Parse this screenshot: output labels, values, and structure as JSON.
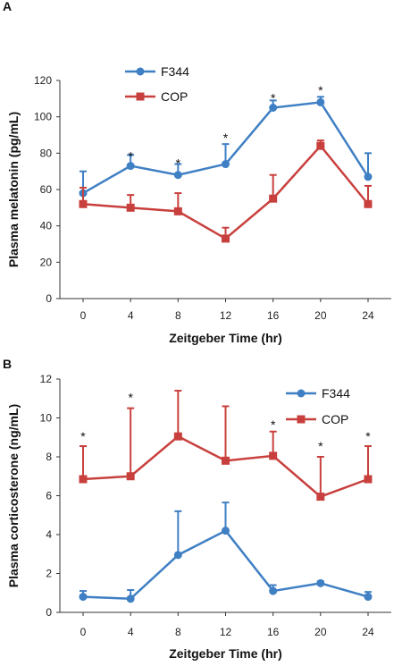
{
  "chart_data": [
    {
      "panel_label": "A",
      "type": "line",
      "ylabel": "Plasma melatonin (pg/mL)",
      "xlabel": "Zeitgeber Time (hr)",
      "x": [
        0,
        4,
        8,
        12,
        16,
        20,
        24
      ],
      "xlim": [
        0,
        24
      ],
      "ylim": [
        0,
        120
      ],
      "yticks": [
        0,
        20,
        40,
        60,
        80,
        100,
        120
      ],
      "legend_position": "top-left",
      "grid": false,
      "series": [
        {
          "name": "F344",
          "color": "#3f7fc4",
          "marker": "circle",
          "error_direction": "up",
          "values": [
            58,
            73,
            68,
            74,
            105,
            108,
            67
          ],
          "errors": [
            12,
            6,
            6,
            11,
            4,
            3,
            13
          ]
        },
        {
          "name": "COP",
          "color": "#c8403d",
          "marker": "square",
          "error_direction": "up",
          "values": [
            52,
            50,
            48,
            33,
            55,
            84,
            52
          ],
          "errors": [
            9,
            7,
            10,
            6,
            13,
            3,
            10
          ]
        }
      ],
      "significance": [
        {
          "x": 4,
          "label": "*",
          "y": 80
        },
        {
          "x": 8,
          "label": "*",
          "y": 76
        },
        {
          "x": 12,
          "label": "*",
          "y": 90
        },
        {
          "x": 16,
          "label": "*",
          "y": 112
        },
        {
          "x": 20,
          "label": "*",
          "y": 116
        }
      ]
    },
    {
      "panel_label": "B",
      "type": "line",
      "ylabel": "Plasma corticosterone (ng/mL)",
      "xlabel": "Zeitgeber Time (hr)",
      "x": [
        0,
        4,
        8,
        12,
        16,
        20,
        24
      ],
      "xlim": [
        0,
        24
      ],
      "ylim": [
        0,
        12
      ],
      "yticks": [
        0,
        2,
        4,
        6,
        8,
        10,
        12
      ],
      "legend_position": "top-right",
      "grid": false,
      "series": [
        {
          "name": "F344",
          "color": "#3f7fc4",
          "marker": "circle",
          "error_direction": "up",
          "values": [
            0.8,
            0.7,
            2.95,
            4.2,
            1.1,
            1.5,
            0.8
          ],
          "errors": [
            0.3,
            0.45,
            2.25,
            1.45,
            0.3,
            0.1,
            0.25
          ]
        },
        {
          "name": "COP",
          "color": "#c8403d",
          "marker": "square",
          "error_direction": "up",
          "values": [
            6.85,
            7.0,
            9.05,
            7.8,
            8.05,
            5.95,
            6.85
          ],
          "errors": [
            1.7,
            3.5,
            2.35,
            2.8,
            1.25,
            2.05,
            1.7
          ]
        }
      ],
      "significance": [
        {
          "x": 0,
          "label": "*",
          "y": 9.2
        },
        {
          "x": 4,
          "label": "*",
          "y": 11.2
        },
        {
          "x": 16,
          "label": "*",
          "y": 9.8
        },
        {
          "x": 20,
          "label": "*",
          "y": 8.7
        },
        {
          "x": 24,
          "label": "*",
          "y": 9.2
        }
      ]
    }
  ]
}
